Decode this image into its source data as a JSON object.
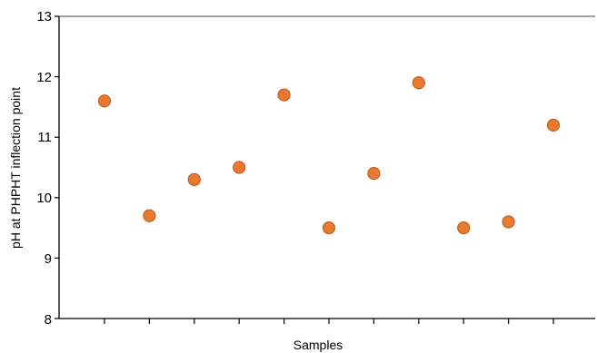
{
  "chart_data": {
    "type": "scatter",
    "title": "",
    "xlabel": "Samples",
    "ylabel": "pH at PHPHT inflection point",
    "ylim": [
      8,
      13
    ],
    "yticks": [
      "8",
      "9",
      "10",
      "11",
      "12",
      "13"
    ],
    "x_tick_count": 11,
    "grid": false,
    "marker_color": "#E8792F",
    "marker_edge_color": "#B85A1C",
    "x": [
      1,
      2,
      3,
      4,
      5,
      6,
      7,
      8,
      9,
      10,
      11
    ],
    "y": [
      11.6,
      9.7,
      10.3,
      10.5,
      11.7,
      9.5,
      10.4,
      11.9,
      9.5,
      9.6,
      11.2
    ]
  }
}
